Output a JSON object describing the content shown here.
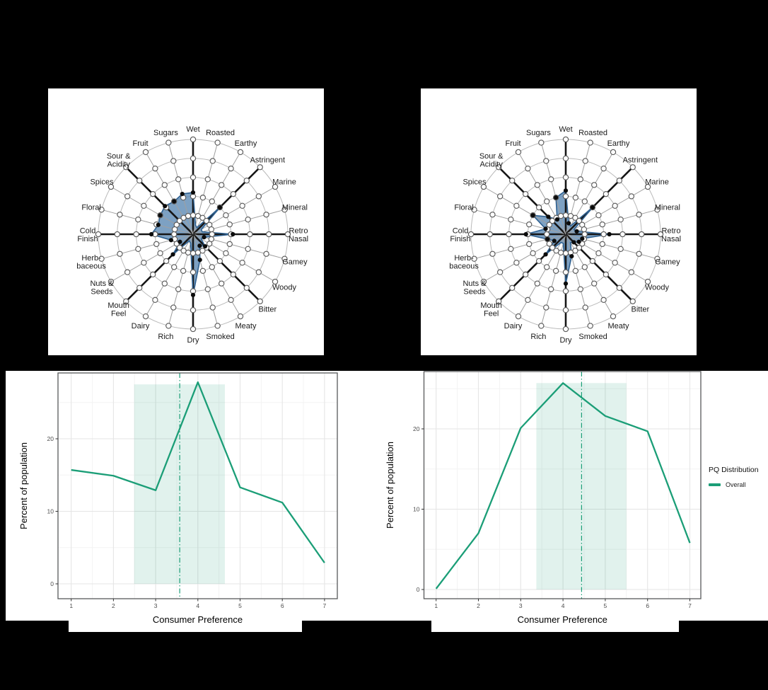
{
  "colors": {
    "radar_fill": "#5d89b4",
    "radar_stroke": "#2f6191",
    "ring": "#b9b9b9",
    "minor_spoke": "#a0a0a0",
    "major_spoke": "#161616",
    "node_stroke": "#5a5a5a",
    "line_green": "#1b9e77",
    "panel_border": "#58595b"
  },
  "legend": {
    "title": "PQ Distribution",
    "items": [
      {
        "label": "Overall"
      }
    ]
  },
  "chart_data": [
    {
      "id": "radar-left",
      "type": "radar",
      "rings": 5,
      "scale_max": 5,
      "major_axes": [
        0,
        3,
        6,
        9,
        12,
        15,
        18,
        21
      ],
      "axes": [
        "Wet",
        "Roasted",
        "Earthy",
        "Astringent",
        "Marine",
        "Mineral",
        "Retro\nNasal",
        "Gamey",
        "Woody",
        "Bitter",
        "Meaty",
        "Smoked",
        "Dry",
        "Rich",
        "Dairy",
        "Mouth\nFeel",
        "Nuts &\nSeeds",
        "Herb-\nbaceous",
        "Cold\nFinish",
        "Floral",
        "Spices",
        "Sour &\nAcidity",
        "Fruit",
        "Sugars"
      ],
      "values": [
        2.2,
        0.5,
        0.4,
        2.0,
        0.5,
        0.5,
        2.1,
        0.6,
        0.5,
        0.9,
        0.7,
        1.4,
        3.2,
        0.5,
        0.4,
        1.5,
        0.8,
        1.2,
        2.2,
        1.9,
        2.0,
        2.1,
        2.0,
        2.2
      ]
    },
    {
      "id": "radar-right",
      "type": "radar",
      "rings": 5,
      "scale_max": 5,
      "major_axes": [
        0,
        3,
        6,
        9,
        12,
        15,
        18,
        21
      ],
      "axes": [
        "Wet",
        "Roasted",
        "Earthy",
        "Astringent",
        "Marine",
        "Mineral",
        "Retro\nNasal",
        "Gamey",
        "Woody",
        "Bitter",
        "Meaty",
        "Smoked",
        "Dry",
        "Rich",
        "Dairy",
        "Mouth\nFeel",
        "Nuts &\nSeeds",
        "Herb-\nbaceous",
        "Cold\nFinish",
        "Floral",
        "Spices",
        "Sour &\nAcidity",
        "Fruit",
        "Sugars"
      ],
      "values": [
        2.3,
        0.6,
        0.5,
        2.0,
        0.5,
        0.6,
        2.3,
        0.9,
        0.8,
        0.6,
        0.5,
        1.2,
        2.6,
        0.5,
        0.5,
        1.5,
        0.7,
        1.0,
        2.1,
        1.1,
        2.0,
        1.3,
        0.9,
        2.0
      ]
    },
    {
      "id": "pq-left",
      "type": "line",
      "title": "",
      "xlabel": "Consumer Preference",
      "ylabel": "Percent of population",
      "x": [
        1,
        2,
        3,
        4,
        5,
        6,
        7
      ],
      "series": [
        {
          "name": "Overall",
          "values": [
            15.7,
            14.9,
            12.9,
            27.8,
            13.3,
            11.2,
            2.9
          ]
        }
      ],
      "xticks": [
        1,
        2,
        3,
        4,
        5,
        6,
        7
      ],
      "yticks": [
        0,
        10,
        20
      ],
      "yminor": [
        5,
        15,
        25
      ],
      "band": {
        "xmin": 2.49,
        "xmax": 4.64,
        "ymin": 0,
        "ymax": 27.5
      },
      "vline": 3.57,
      "xlim": [
        0.69,
        7.31
      ],
      "ylim": [
        0,
        29.1
      ],
      "grid": true,
      "legend_position": "none"
    },
    {
      "id": "pq-right",
      "type": "line",
      "title": "",
      "xlabel": "Consumer Preference",
      "ylabel": "Percent of population",
      "x": [
        1,
        2,
        3,
        4,
        5,
        6,
        7
      ],
      "series": [
        {
          "name": "Overall",
          "values": [
            0.1,
            7.0,
            20.1,
            25.7,
            21.6,
            19.7,
            5.8
          ]
        }
      ],
      "xticks": [
        1,
        2,
        3,
        4,
        5,
        6,
        7
      ],
      "yticks": [
        0,
        10,
        20
      ],
      "yminor": [
        5,
        15,
        25
      ],
      "band": {
        "xmin": 3.37,
        "xmax": 5.5,
        "ymin": 0,
        "ymax": 25.7
      },
      "vline": 4.44,
      "xlim": [
        0.71,
        7.27
      ],
      "ylim": [
        0,
        27.1
      ],
      "grid": true,
      "legend_position": "right"
    }
  ]
}
